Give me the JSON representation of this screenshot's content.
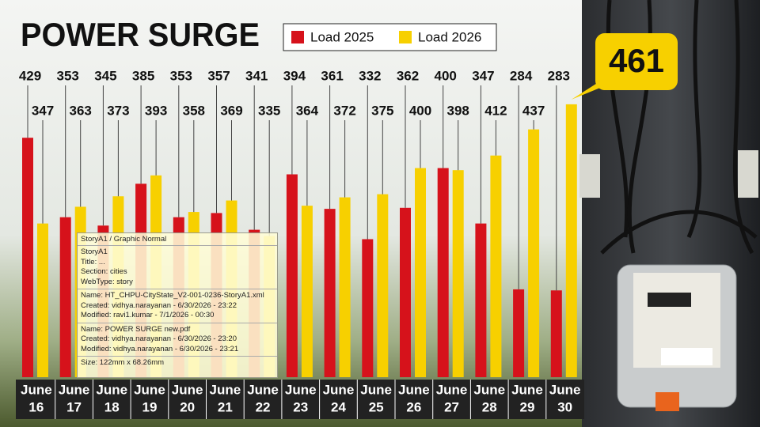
{
  "chart_data": {
    "type": "bar",
    "title": "POWER SURGE",
    "categories": [
      [
        "June",
        "16"
      ],
      [
        "June",
        "17"
      ],
      [
        "June",
        "18"
      ],
      [
        "June",
        "19"
      ],
      [
        "June",
        "20"
      ],
      [
        "June",
        "21"
      ],
      [
        "June",
        "22"
      ],
      [
        "June",
        "23"
      ],
      [
        "June",
        "24"
      ],
      [
        "June",
        "25"
      ],
      [
        "June",
        "26"
      ],
      [
        "June",
        "27"
      ],
      [
        "June",
        "28"
      ],
      [
        "June",
        "29"
      ],
      [
        "June",
        "30"
      ]
    ],
    "series": [
      {
        "name": "Load 2025",
        "color": "#d6121b",
        "values": [
          429,
          353,
          345,
          385,
          353,
          357,
          341,
          394,
          361,
          332,
          362,
          400,
          347,
          284,
          283
        ]
      },
      {
        "name": "Load 2026",
        "color": "#f7d000",
        "values": [
          347,
          363,
          373,
          393,
          358,
          369,
          335,
          364,
          372,
          375,
          400,
          398,
          412,
          437,
          461
        ]
      }
    ],
    "ylim": [
      200,
      470
    ]
  },
  "tooltip": {
    "header": "StoryA1 / Graphic Normal",
    "sections": [
      [
        "StoryA1",
        "Title: ...",
        "Section: cities",
        "WebType: story"
      ],
      [
        "Name: HT_CHPU-CityState_V2-001-0236-StoryA1.xml",
        "Created: vidhya.narayanan - 6/30/2026 - 23:22",
        "Modified: ravi1.kumar - 7/1/2026 - 00:30"
      ],
      [
        "Name: POWER SURGE new.pdf",
        "Created: vidhya.narayanan - 6/30/2026 - 23:20",
        "Modified: vidhya.narayanan - 6/30/2026 - 23:21"
      ],
      [
        "Size: 122mm x 68.26mm"
      ]
    ]
  }
}
